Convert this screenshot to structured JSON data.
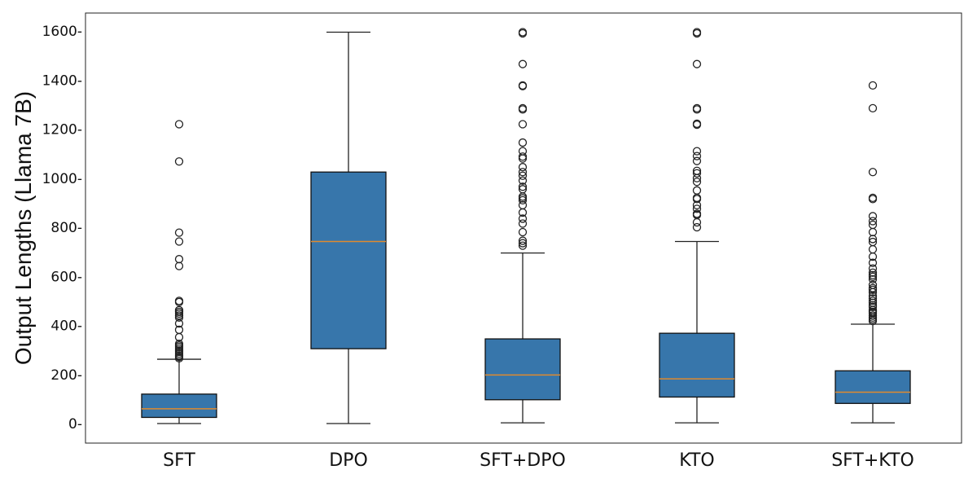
{
  "chart_data": {
    "type": "box",
    "ylabel": "Output Lengths (Llama 7B)",
    "ylim": [
      -80,
      1670
    ],
    "yticks": [
      0,
      200,
      400,
      600,
      800,
      1000,
      1200,
      1400,
      1600
    ],
    "ytick_labels": [
      "0-",
      "200-",
      "400-",
      "600-",
      "800-",
      "1000-",
      "1200-",
      "1400-",
      "1600-"
    ],
    "categories": [
      "SFT",
      "DPO",
      "SFT+DPO",
      "KTO",
      "SFT+KTO"
    ],
    "box_color": "#3776ab",
    "median_color": "#e08a2e",
    "boxes": [
      {
        "name": "SFT",
        "min": 0,
        "q1": 25,
        "median": 60,
        "q3": 120,
        "max": 262,
        "outliers": [
          1220,
          1068,
          778,
          742,
          670,
          642,
          500,
          495,
          462,
          455,
          448,
          440,
          432,
          408,
          382,
          352,
          325,
          318,
          312,
          305,
          298,
          292,
          285,
          278,
          272,
          266
        ]
      },
      {
        "name": "DPO",
        "min": 0,
        "q1": 305,
        "median": 742,
        "q3": 1025,
        "max": 1595,
        "outliers": []
      },
      {
        "name": "SFT+DPO",
        "min": 3,
        "q1": 97,
        "median": 198,
        "q3": 345,
        "max": 695,
        "outliers": [
          1595,
          1590,
          1465,
          1378,
          1375,
          1285,
          1280,
          1220,
          1145,
          1110,
          1088,
          1080,
          1045,
          1025,
          1010,
          990,
          965,
          955,
          925,
          918,
          910,
          890,
          860,
          835,
          815,
          780,
          745,
          735,
          725
        ]
      },
      {
        "name": "KTO",
        "min": 3,
        "q1": 108,
        "median": 182,
        "q3": 368,
        "max": 742,
        "outliers": [
          1595,
          1590,
          1465,
          1285,
          1280,
          1222,
          1218,
          1110,
          1090,
          1070,
          1030,
          1020,
          1000,
          985,
          950,
          920,
          915,
          890,
          875,
          855,
          850,
          820,
          800
        ]
      },
      {
        "name": "SFT+KTO",
        "min": 3,
        "q1": 82,
        "median": 128,
        "q3": 215,
        "max": 405,
        "outliers": [
          1378,
          1285,
          1025,
          920,
          915,
          845,
          825,
          810,
          780,
          752,
          740,
          710,
          680,
          655,
          632,
          615,
          605,
          598,
          588,
          565,
          552,
          545,
          535,
          520,
          510,
          500,
          492,
          482,
          475,
          462,
          455,
          450,
          440,
          432,
          425,
          418
        ]
      }
    ]
  }
}
